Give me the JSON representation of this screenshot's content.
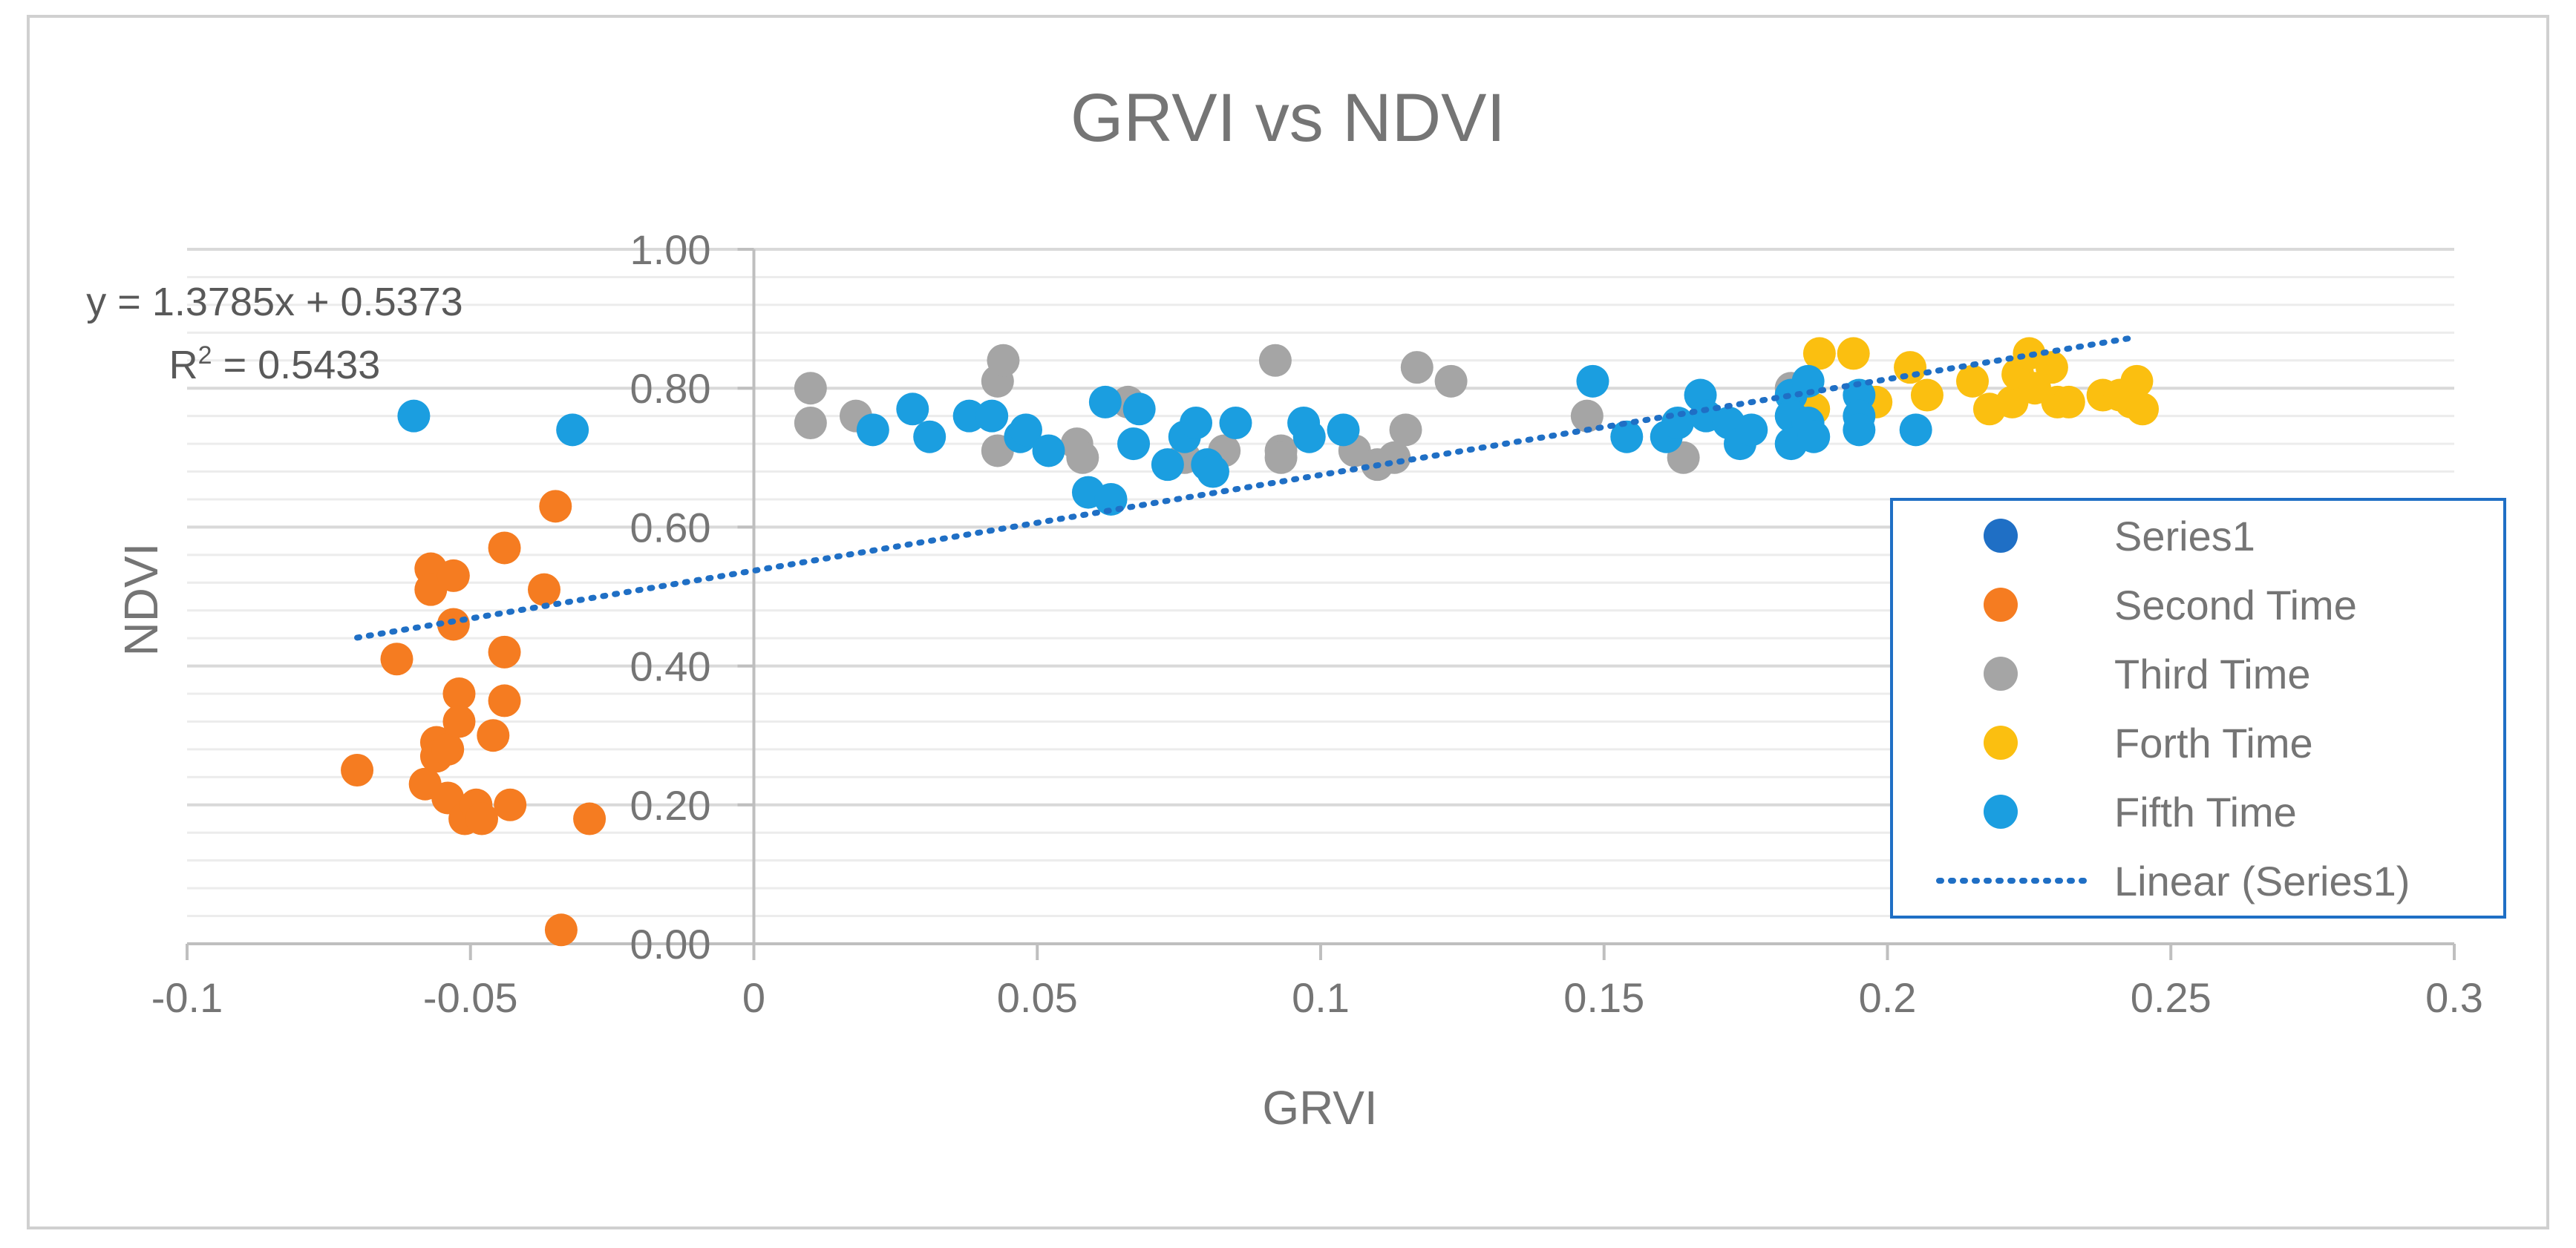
{
  "chart_data": {
    "type": "scatter",
    "title": "GRVI vs NDVI",
    "xlabel": "GRVI",
    "ylabel": "NDVI",
    "xlim": [
      -0.1,
      0.3
    ],
    "ylim": [
      0,
      1
    ],
    "x_ticks": [
      "-0.1",
      "-0.05",
      "0",
      "0.05",
      "0.1",
      "0.15",
      "0.2",
      "0.25",
      "0.3"
    ],
    "y_ticks": [
      "0.00",
      "0.20",
      "0.40",
      "0.60",
      "0.80",
      "1.00"
    ],
    "legend_position": "right",
    "trendline": {
      "label": "Linear (Series1)",
      "slope": 1.3785,
      "intercept": 0.5373,
      "x_range": [
        -0.07,
        0.244
      ],
      "equation": "y = 1.3785x + 0.5373",
      "r2_label": "R",
      "r2_sup": "2",
      "r2_value": " = 0.5433"
    },
    "series": [
      {
        "name": "Series1",
        "color": "#1f6fc5",
        "points": []
      },
      {
        "name": "Second Time",
        "color": "#f57c21",
        "points": [
          [
            -0.07,
            0.25
          ],
          [
            -0.063,
            0.41
          ],
          [
            -0.058,
            0.23
          ],
          [
            -0.057,
            0.54
          ],
          [
            -0.057,
            0.51
          ],
          [
            -0.056,
            0.29
          ],
          [
            -0.056,
            0.27
          ],
          [
            -0.054,
            0.28
          ],
          [
            -0.054,
            0.21
          ],
          [
            -0.053,
            0.53
          ],
          [
            -0.053,
            0.46
          ],
          [
            -0.052,
            0.36
          ],
          [
            -0.052,
            0.32
          ],
          [
            -0.051,
            0.18
          ],
          [
            -0.049,
            0.2
          ],
          [
            -0.048,
            0.18
          ],
          [
            -0.046,
            0.3
          ],
          [
            -0.044,
            0.57
          ],
          [
            -0.044,
            0.42
          ],
          [
            -0.044,
            0.35
          ],
          [
            -0.043,
            0.2
          ],
          [
            -0.037,
            0.51
          ],
          [
            -0.035,
            0.63
          ],
          [
            -0.034,
            0.02
          ],
          [
            -0.029,
            0.18
          ]
        ]
      },
      {
        "name": "Third Time",
        "color": "#a5a5a5",
        "points": [
          [
            0.01,
            0.8
          ],
          [
            0.01,
            0.75
          ],
          [
            0.018,
            0.76
          ],
          [
            0.043,
            0.81
          ],
          [
            0.044,
            0.84
          ],
          [
            0.043,
            0.71
          ],
          [
            0.057,
            0.72
          ],
          [
            0.058,
            0.7
          ],
          [
            0.066,
            0.78
          ],
          [
            0.076,
            0.7
          ],
          [
            0.083,
            0.71
          ],
          [
            0.092,
            0.84
          ],
          [
            0.093,
            0.71
          ],
          [
            0.093,
            0.7
          ],
          [
            0.106,
            0.71
          ],
          [
            0.11,
            0.69
          ],
          [
            0.113,
            0.7
          ],
          [
            0.115,
            0.74
          ],
          [
            0.117,
            0.83
          ],
          [
            0.123,
            0.81
          ],
          [
            0.147,
            0.76
          ],
          [
            0.164,
            0.7
          ],
          [
            0.183,
            0.8
          ]
        ]
      },
      {
        "name": "Forth Time",
        "color": "#fbbf10",
        "points": [
          [
            0.187,
            0.77
          ],
          [
            0.188,
            0.85
          ],
          [
            0.194,
            0.85
          ],
          [
            0.198,
            0.78
          ],
          [
            0.204,
            0.83
          ],
          [
            0.207,
            0.79
          ],
          [
            0.215,
            0.81
          ],
          [
            0.218,
            0.77
          ],
          [
            0.222,
            0.78
          ],
          [
            0.223,
            0.82
          ],
          [
            0.225,
            0.85
          ],
          [
            0.226,
            0.8
          ],
          [
            0.229,
            0.83
          ],
          [
            0.23,
            0.78
          ],
          [
            0.232,
            0.78
          ],
          [
            0.238,
            0.79
          ],
          [
            0.241,
            0.79
          ],
          [
            0.243,
            0.78
          ],
          [
            0.244,
            0.81
          ],
          [
            0.245,
            0.77
          ]
        ]
      },
      {
        "name": "Fifth Time",
        "color": "#1b9ee0",
        "points": [
          [
            -0.06,
            0.76
          ],
          [
            -0.032,
            0.74
          ],
          [
            0.021,
            0.74
          ],
          [
            0.028,
            0.77
          ],
          [
            0.031,
            0.73
          ],
          [
            0.038,
            0.76
          ],
          [
            0.042,
            0.76
          ],
          [
            0.047,
            0.73
          ],
          [
            0.048,
            0.74
          ],
          [
            0.052,
            0.71
          ],
          [
            0.059,
            0.65
          ],
          [
            0.062,
            0.78
          ],
          [
            0.063,
            0.64
          ],
          [
            0.067,
            0.72
          ],
          [
            0.068,
            0.77
          ],
          [
            0.073,
            0.69
          ],
          [
            0.076,
            0.73
          ],
          [
            0.078,
            0.75
          ],
          [
            0.08,
            0.69
          ],
          [
            0.081,
            0.68
          ],
          [
            0.085,
            0.75
          ],
          [
            0.097,
            0.75
          ],
          [
            0.098,
            0.73
          ],
          [
            0.104,
            0.74
          ],
          [
            0.148,
            0.81
          ],
          [
            0.154,
            0.73
          ],
          [
            0.161,
            0.73
          ],
          [
            0.163,
            0.75
          ],
          [
            0.167,
            0.79
          ],
          [
            0.168,
            0.76
          ],
          [
            0.172,
            0.75
          ],
          [
            0.174,
            0.72
          ],
          [
            0.176,
            0.74
          ],
          [
            0.183,
            0.79
          ],
          [
            0.183,
            0.76
          ],
          [
            0.183,
            0.72
          ],
          [
            0.186,
            0.81
          ],
          [
            0.186,
            0.75
          ],
          [
            0.187,
            0.73
          ],
          [
            0.195,
            0.79
          ],
          [
            0.195,
            0.76
          ],
          [
            0.195,
            0.74
          ],
          [
            0.205,
            0.74
          ]
        ]
      }
    ]
  }
}
